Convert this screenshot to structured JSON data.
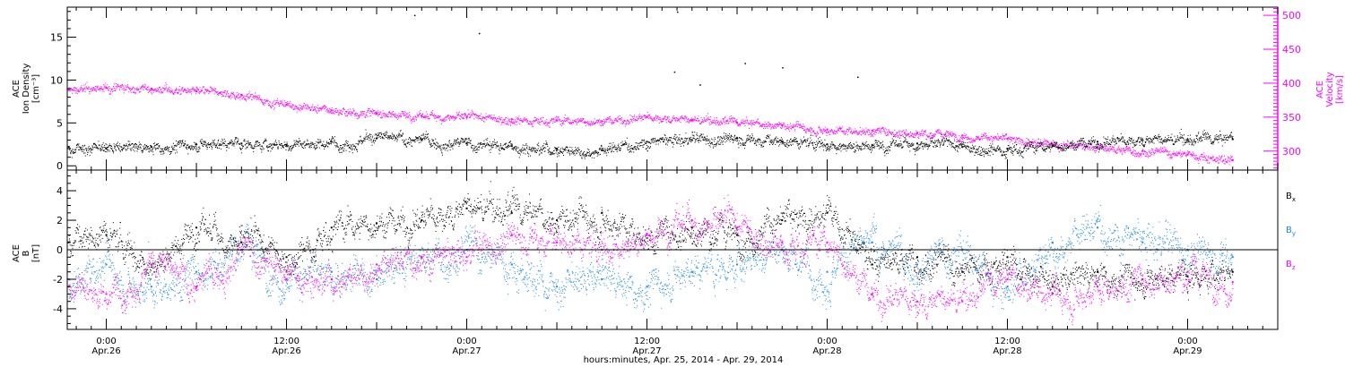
{
  "colors": {
    "black": "#000000",
    "magenta": "#ff00ff",
    "blue": "#1e88e5",
    "background": "#ffffff"
  },
  "xaxis": {
    "title": "hours:minutes, Apr. 25, 2014 - Apr. 29, 2014",
    "range_hours": [
      -2.6,
      78.0
    ],
    "ticks": [
      {
        "h": 0,
        "time": "0:00",
        "date": "Apr.26"
      },
      {
        "h": 12,
        "time": "12:00",
        "date": "Apr.26"
      },
      {
        "h": 24,
        "time": "0:00",
        "date": "Apr.27"
      },
      {
        "h": 36,
        "time": "12:00",
        "date": "Apr.27"
      },
      {
        "h": 48,
        "time": "0:00",
        "date": "Apr.28"
      },
      {
        "h": 60,
        "time": "12:00",
        "date": "Apr.28"
      },
      {
        "h": 72,
        "time": "0:00",
        "date": "Apr.29"
      }
    ]
  },
  "chart_data": [
    {
      "type": "scatter",
      "panel": "top",
      "left_axis_label_lines": [
        "ACE",
        "Ion Density",
        "[cm⁻³]"
      ],
      "right_axis_label_lines": [
        "ACE",
        "Velocity",
        "[km/s]"
      ],
      "ylim_left": [
        -0.5,
        18.5
      ],
      "ylim_right": [
        272,
        512
      ],
      "left_ticks": [
        "0",
        "5",
        "10",
        "15"
      ],
      "right_ticks": [
        "300",
        "350",
        "400",
        "450",
        "500"
      ],
      "grid": false,
      "series": [
        {
          "axis": "left",
          "color": "black",
          "x": [
            -2.5,
            0,
            3,
            6,
            9,
            12,
            15,
            18,
            21,
            24,
            27,
            30,
            33,
            36,
            39,
            42,
            45,
            48,
            51,
            54,
            57,
            60,
            63,
            66,
            69,
            72,
            75
          ],
          "y": [
            2.2,
            2.0,
            2.2,
            2.5,
            2.6,
            2.4,
            2.8,
            3.2,
            3.0,
            2.6,
            2.3,
            2.0,
            1.8,
            2.8,
            3.0,
            3.2,
            2.8,
            2.5,
            2.4,
            2.6,
            2.2,
            2.0,
            2.3,
            2.8,
            3.0,
            3.0,
            3.1
          ]
        },
        {
          "axis": "right",
          "color": "magenta",
          "x": [
            -2.5,
            0,
            3,
            6,
            9,
            12,
            15,
            18,
            21,
            24,
            27,
            30,
            33,
            36,
            39,
            42,
            45,
            48,
            51,
            54,
            57,
            60,
            63,
            66,
            69,
            72,
            75
          ],
          "y": [
            390,
            393,
            392,
            388,
            383,
            368,
            360,
            356,
            352,
            350,
            347,
            345,
            344,
            350,
            346,
            342,
            338,
            332,
            330,
            327,
            323,
            318,
            310,
            305,
            300,
            295,
            287
          ]
        }
      ]
    },
    {
      "type": "scatter",
      "panel": "bottom",
      "left_axis_label_lines": [
        "ACE",
        "B",
        "[nT]"
      ],
      "ylim": [
        -5.4,
        5.4
      ],
      "ticks": [
        "-4",
        "-2",
        "0",
        "2",
        "4"
      ],
      "zero_line": true,
      "grid": false,
      "series": [
        {
          "name": "Bx",
          "color": "black",
          "x": [
            -2.5,
            0,
            3,
            6,
            9,
            12,
            15,
            18,
            21,
            24,
            27,
            30,
            33,
            36,
            39,
            42,
            45,
            48,
            51,
            54,
            57,
            60,
            63,
            66,
            69,
            72,
            75
          ],
          "y": [
            0.5,
            1.0,
            -1.0,
            1.5,
            0.5,
            -0.5,
            1.5,
            1.8,
            2.0,
            2.8,
            2.5,
            2.0,
            2.5,
            1.0,
            1.5,
            1.0,
            2.0,
            2.5,
            -1.0,
            -0.5,
            -1.5,
            -0.5,
            -2.5,
            -1.5,
            -2.0,
            -1.8,
            -1.5
          ]
        },
        {
          "name": "By",
          "color": "blue",
          "x": [
            -2.5,
            0,
            3,
            6,
            9,
            12,
            15,
            18,
            21,
            24,
            27,
            30,
            33,
            36,
            39,
            42,
            45,
            48,
            51,
            54,
            57,
            60,
            63,
            66,
            69,
            72,
            75
          ],
          "y": [
            -2.0,
            -1.0,
            -2.5,
            -1.5,
            0.5,
            -2.0,
            -1.5,
            -2.0,
            -0.5,
            0.0,
            -1.0,
            -2.5,
            -2.0,
            -2.5,
            -1.5,
            -1.0,
            0.0,
            -1.5,
            0.5,
            -1.0,
            0.0,
            -2.5,
            0.5,
            1.5,
            0.5,
            0.0,
            -0.5
          ]
        },
        {
          "name": "Bz",
          "color": "magenta",
          "x": [
            -2.5,
            0,
            3,
            6,
            9,
            12,
            15,
            18,
            21,
            24,
            27,
            30,
            33,
            36,
            39,
            42,
            45,
            48,
            51,
            54,
            57,
            60,
            63,
            66,
            69,
            72,
            75
          ],
          "y": [
            -2.5,
            -3.0,
            -1.0,
            -2.5,
            0.0,
            -1.5,
            -2.0,
            -1.0,
            -0.5,
            -0.5,
            1.0,
            0.5,
            0.0,
            1.0,
            2.0,
            1.5,
            0.5,
            0.5,
            -3.0,
            -3.5,
            -3.5,
            -2.0,
            -3.0,
            -2.5,
            -2.0,
            -1.5,
            -2.2
          ]
        }
      ]
    }
  ]
}
